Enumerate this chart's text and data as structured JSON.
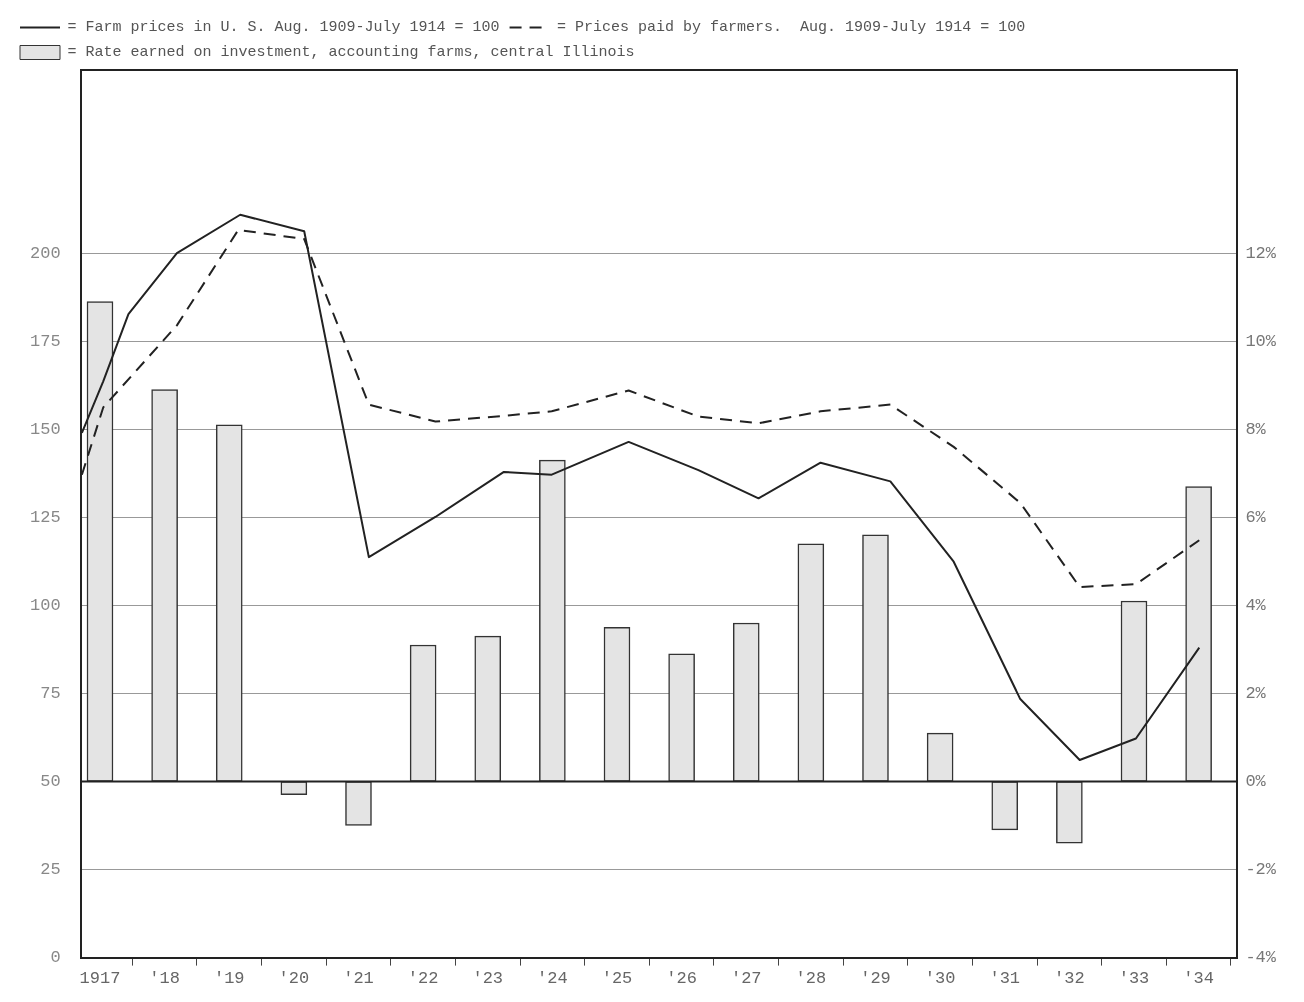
{
  "chart_data": {
    "type": "bar",
    "x": [
      1917,
      1918,
      1919,
      1920,
      1921,
      1922,
      1923,
      1924,
      1925,
      1926,
      1927,
      1928,
      1929,
      1930,
      1931,
      1932,
      1933,
      1934
    ],
    "xlim": [
      1916.7,
      1934.6
    ],
    "xticks": [
      {
        "value": 1917,
        "label": "1917"
      },
      {
        "value": 1918,
        "label": "'18"
      },
      {
        "value": 1919,
        "label": "'19"
      },
      {
        "value": 1920,
        "label": "'20"
      },
      {
        "value": 1921,
        "label": "'21"
      },
      {
        "value": 1922,
        "label": "'22"
      },
      {
        "value": 1923,
        "label": "'23"
      },
      {
        "value": 1924,
        "label": "'24"
      },
      {
        "value": 1925,
        "label": "'25"
      },
      {
        "value": 1926,
        "label": "'26"
      },
      {
        "value": 1927,
        "label": "'27"
      },
      {
        "value": 1928,
        "label": "'28"
      },
      {
        "value": 1929,
        "label": "'29"
      },
      {
        "value": 1930,
        "label": "'30"
      },
      {
        "value": 1931,
        "label": "'31"
      },
      {
        "value": 1932,
        "label": "'32"
      },
      {
        "value": 1933,
        "label": "'33"
      },
      {
        "value": 1934,
        "label": "'34"
      }
    ],
    "ylim": [
      0,
      252
    ],
    "yticks": [
      0,
      25,
      50,
      75,
      100,
      125,
      150,
      175,
      200
    ],
    "y2lim": [
      -4,
      16.16
    ],
    "y2ticks": [
      {
        "value": -4,
        "label": "-4%"
      },
      {
        "value": -2,
        "label": "-2%"
      },
      {
        "value": 0,
        "label": "0%"
      },
      {
        "value": 2,
        "label": "2%"
      },
      {
        "value": 4,
        "label": "4%"
      },
      {
        "value": 6,
        "label": "6%"
      },
      {
        "value": 8,
        "label": "8%"
      },
      {
        "value": 10,
        "label": "10%"
      },
      {
        "value": 12,
        "label": "12%"
      }
    ],
    "grid": "y",
    "legend": "top left",
    "series": [
      {
        "name": "= Farm prices in U. S. Aug. 1909-July 1914 = 100",
        "type": "line",
        "line_style": "solid",
        "marker": "none",
        "color": "#222222",
        "x": [
          1916.72,
          1917.05,
          1917.44,
          1918.19,
          1919.17,
          1920.16,
          1921.16,
          1922.19,
          1923.25,
          1923.99,
          1925.18,
          1926.26,
          1927.19,
          1928.15,
          1929.23,
          1930.21,
          1931.24,
          1932.16,
          1933.03,
          1934.01
        ],
        "values": [
          149,
          163.6,
          182.7,
          200,
          210.9,
          206.2,
          113.7,
          125.1,
          137.9,
          137.1,
          146.4,
          138.4,
          130.4,
          140.5,
          135.2,
          112.4,
          73.4,
          56.1,
          62.2,
          88
        ]
      },
      {
        "name": "= Prices paid by farmers.  Aug. 1909-July 1914 = 100",
        "type": "line",
        "line_style": "dashed",
        "marker": "none",
        "color": "#222222",
        "x": [
          1916.72,
          1917.05,
          1918.19,
          1919.14,
          1920.16,
          1921.16,
          1922.19,
          1923.25,
          1923.99,
          1925.18,
          1926.26,
          1927.19,
          1928.15,
          1929.23,
          1930.21,
          1931.24,
          1932.16,
          1933.03,
          1934.01
        ],
        "values": [
          137.1,
          156.2,
          179.5,
          206.6,
          204,
          157,
          152.2,
          153.8,
          155.1,
          161,
          153.6,
          151.7,
          155.1,
          157,
          145,
          129.1,
          105.2,
          106,
          118.5
        ]
      },
      {
        "name": "= Rate earned on investment, accounting farms, central Illinois",
        "axis": "y2",
        "color": "#e4e4e4",
        "values": [
          10.9,
          8.9,
          8.1,
          -0.3,
          -1.0,
          3.1,
          3.3,
          7.3,
          3.5,
          2.9,
          3.6,
          5.4,
          5.6,
          1.1,
          -1.1,
          -1.4,
          4.1,
          6.7
        ]
      }
    ]
  }
}
